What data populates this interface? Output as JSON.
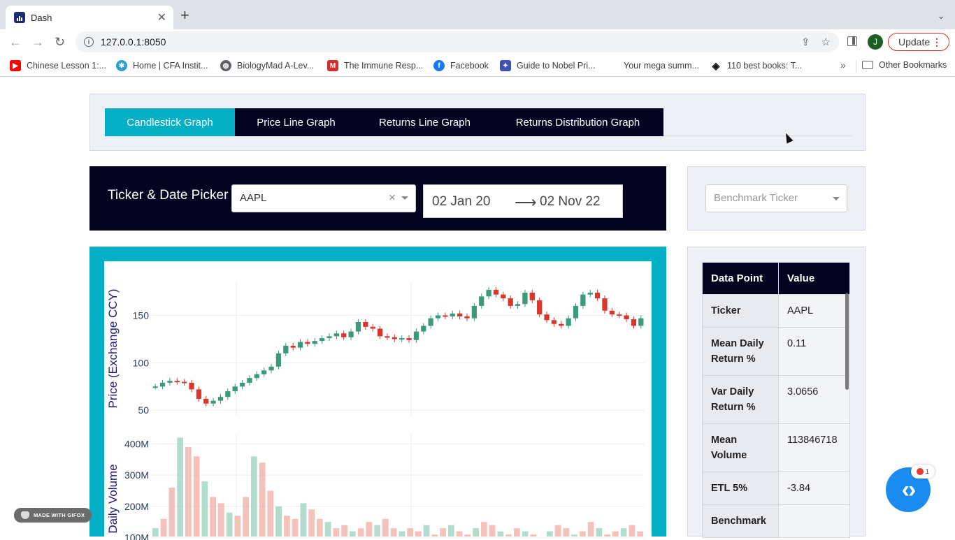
{
  "browser": {
    "tab_title": "Dash",
    "url": "127.0.0.1:8050",
    "update_label": "Update",
    "avatar_letter": "J",
    "bookmarks": [
      {
        "label": "Chinese Lesson 1:...",
        "icon": "youtube-icon",
        "color": "#ff0000"
      },
      {
        "label": "Home | CFA Instit...",
        "icon": "cfa-icon",
        "color": "#2a9fd6"
      },
      {
        "label": "BiologyMad A-Lev...",
        "icon": "globe-icon",
        "color": "#5f6368"
      },
      {
        "label": "The Immune Resp...",
        "icon": "m-icon",
        "color": "#d32f2f"
      },
      {
        "label": "Facebook",
        "icon": "facebook-icon",
        "color": "#1877f2"
      },
      {
        "label": "Guide to Nobel Pri...",
        "icon": "nobel-icon",
        "color": "#3f51b5"
      },
      {
        "label": "Your mega summ...",
        "icon": "blank-icon",
        "color": "#ffffff"
      },
      {
        "label": "110 best books: T...",
        "icon": "diamond-icon",
        "color": "#111111"
      }
    ],
    "other_bookmarks": "Other Bookmarks"
  },
  "tabs": [
    {
      "label": "Candlestick Graph",
      "active": true
    },
    {
      "label": "Price Line Graph",
      "active": false
    },
    {
      "label": "Returns Line Graph",
      "active": false
    },
    {
      "label": "Returns Distribution Graph",
      "active": false
    }
  ],
  "picker": {
    "label": "Ticker & Date Picker",
    "ticker_value": "AAPL",
    "clear_symbol": "×",
    "start_date": "02 Jan 20",
    "end_date": "02 Nov 22",
    "arrow": "⟶"
  },
  "benchmark": {
    "placeholder": "Benchmark Ticker"
  },
  "stats": {
    "headers": [
      "Data Point",
      "Value"
    ],
    "rows": [
      {
        "key": "Ticker",
        "value": "AAPL"
      },
      {
        "key": "Mean Daily Return %",
        "value": "0.11"
      },
      {
        "key": "Var Daily Return %",
        "value": "3.0656"
      },
      {
        "key": "Mean Volume",
        "value": "113846718"
      },
      {
        "key": "ETL 5%",
        "value": "-3.84"
      },
      {
        "key": "Benchmark",
        "value": ""
      }
    ]
  },
  "watermark": "MADE WITH GIFOX",
  "fab_badge": "1",
  "colors": {
    "accent": "#04aec5",
    "navy": "#050420",
    "up": "#3a9a7a",
    "down": "#d9372b"
  },
  "chart_data": [
    {
      "type": "line",
      "ylabel": "Price (Exchange CCY)",
      "yticks": [
        50,
        100,
        150
      ],
      "ylim": [
        45,
        185
      ],
      "series": [
        {
          "values": [
            75,
            79,
            81,
            80,
            79,
            72,
            62,
            57,
            60,
            64,
            70,
            75,
            79,
            84,
            88,
            92,
            96,
            110,
            118,
            116,
            122,
            120,
            123,
            126,
            128,
            131,
            127,
            133,
            143,
            138,
            136,
            128,
            127,
            125,
            126,
            124,
            133,
            139,
            147,
            150,
            149,
            152,
            149,
            147,
            160,
            170,
            177,
            172,
            168,
            160,
            162,
            174,
            166,
            151,
            145,
            141,
            139,
            147,
            160,
            172,
            174,
            168,
            155,
            151,
            150,
            146,
            139,
            147
          ]
        }
      ],
      "grid": true
    },
    {
      "type": "bar",
      "ylabel": "Daily Volume",
      "yticks": [
        "100M",
        "200M",
        "300M",
        "400M"
      ],
      "ylim": [
        90,
        430
      ],
      "series": [
        {
          "name": "",
          "values": [
            130,
            160,
            260,
            420,
            390,
            360,
            280,
            230,
            210,
            180,
            170,
            230,
            360,
            340,
            250,
            200,
            170,
            160,
            210,
            190,
            160,
            150,
            130,
            140,
            120,
            130,
            150,
            140,
            160,
            130,
            120,
            130,
            120,
            140,
            110,
            130,
            140,
            120,
            110,
            130,
            150,
            140,
            120,
            110,
            130,
            120,
            110,
            100,
            120,
            140,
            130,
            110,
            120,
            150,
            130,
            110,
            120,
            130,
            140,
            120
          ]
        }
      ],
      "grid": true
    }
  ]
}
